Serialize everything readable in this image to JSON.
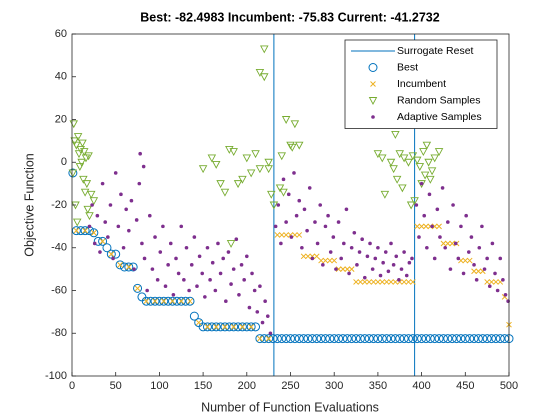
{
  "chart_data": {
    "type": "scatter",
    "title": "Best: -82.4983 Incumbent: -75.83 Current: -41.2732",
    "xlabel": "Number of Function Evaluations",
    "ylabel": "Objective Function",
    "xlim": [
      0,
      500
    ],
    "ylim": [
      -100,
      60
    ],
    "xticks": [
      0,
      50,
      100,
      150,
      200,
      250,
      300,
      350,
      400,
      450,
      500
    ],
    "yticks": [
      -100,
      -80,
      -60,
      -40,
      -20,
      0,
      20,
      40,
      60
    ],
    "grid": false,
    "legend": "upper right",
    "series": [
      {
        "name": "Surrogate Reset",
        "color": "#0072BD",
        "marker": "vline",
        "x": [
          231,
          392
        ]
      },
      {
        "name": "Best",
        "color": "#0072BD",
        "marker": "circle",
        "x": [
          1,
          5,
          10,
          15,
          20,
          25,
          30,
          35,
          40,
          45,
          50,
          55,
          60,
          65,
          70,
          75,
          80,
          85,
          90,
          95,
          100,
          105,
          110,
          115,
          120,
          125,
          130,
          135,
          140,
          145,
          150,
          155,
          160,
          165,
          170,
          175,
          180,
          185,
          190,
          195,
          200,
          205,
          210,
          215,
          220,
          225,
          230,
          235,
          240,
          245,
          250,
          255,
          260,
          265,
          270,
          275,
          280,
          285,
          290,
          295,
          300,
          305,
          310,
          315,
          320,
          325,
          330,
          335,
          340,
          345,
          350,
          355,
          360,
          365,
          370,
          375,
          380,
          385,
          390,
          395,
          400,
          405,
          410,
          415,
          420,
          425,
          430,
          435,
          440,
          445,
          450,
          455,
          460,
          465,
          470,
          475,
          480,
          485,
          490,
          495,
          500
        ],
        "values": [
          -5,
          -32,
          -32,
          -32,
          -32,
          -33,
          -37,
          -37,
          -40,
          -43,
          -43,
          -48,
          -49,
          -49,
          -49,
          -59,
          -63,
          -65,
          -65,
          -65,
          -65,
          -65,
          -65,
          -65,
          -65,
          -65,
          -65,
          -65,
          -72,
          -75,
          -77,
          -77,
          -77,
          -77,
          -77,
          -77,
          -77,
          -77,
          -77,
          -77,
          -77,
          -77,
          -77,
          -82.5,
          -82.5,
          -82.5,
          -82.5,
          -82.5,
          -82.5,
          -82.5,
          -82.5,
          -82.5,
          -82.5,
          -82.5,
          -82.5,
          -82.5,
          -82.5,
          -82.5,
          -82.5,
          -82.5,
          -82.5,
          -82.5,
          -82.5,
          -82.5,
          -82.5,
          -82.5,
          -82.5,
          -82.5,
          -82.5,
          -82.5,
          -82.5,
          -82.5,
          -82.5,
          -82.5,
          -82.5,
          -82.5,
          -82.5,
          -82.5,
          -82.5,
          -82.5,
          -82.5,
          -82.5,
          -82.5,
          -82.5,
          -82.5,
          -82.5,
          -82.5,
          -82.5,
          -82.5,
          -82.5,
          -82.5,
          -82.5,
          -82.5,
          -82.5,
          -82.5,
          -82.5,
          -82.5,
          -82.5,
          -82.5,
          -82.5,
          -82.5
        ]
      },
      {
        "name": "Incumbent",
        "color": "#EDB120",
        "marker": "x",
        "x": [
          5,
          15,
          25,
          35,
          45,
          55,
          65,
          75,
          85,
          95,
          105,
          115,
          125,
          135,
          145,
          155,
          165,
          175,
          185,
          195,
          205,
          215,
          225,
          235,
          240,
          245,
          250,
          255,
          260,
          265,
          270,
          275,
          280,
          285,
          290,
          295,
          300,
          305,
          310,
          315,
          320,
          325,
          330,
          335,
          340,
          345,
          350,
          355,
          360,
          365,
          370,
          375,
          380,
          385,
          390,
          395,
          400,
          405,
          410,
          415,
          420,
          425,
          430,
          435,
          440,
          445,
          450,
          455,
          460,
          465,
          470,
          475,
          480,
          485,
          490,
          495,
          500
        ],
        "values": [
          -32,
          -32,
          -33,
          -37,
          -43,
          -48,
          -49,
          -59,
          -65,
          -65,
          -65,
          -65,
          -65,
          -65,
          -75,
          -77,
          -77,
          -77,
          -77,
          -77,
          -77,
          -82.5,
          -82.5,
          -34,
          -34,
          -34,
          -34,
          -34,
          -34,
          -44,
          -44,
          -44,
          -44,
          -46,
          -46,
          -46,
          -46,
          -50,
          -50,
          -50,
          -50,
          -56,
          -56,
          -56,
          -56,
          -56,
          -56,
          -56,
          -56,
          -56,
          -56,
          -56,
          -56,
          -56,
          -56,
          -30,
          -30,
          -30,
          -30,
          -30,
          -30,
          -38,
          -38,
          -38,
          -38,
          -46,
          -46,
          -46,
          -51,
          -51,
          -51,
          -56,
          -56,
          -56,
          -56,
          -63,
          -76
        ]
      },
      {
        "name": "Random Samples",
        "color": "#77AC30",
        "marker": "triangle",
        "x": [
          1,
          2,
          3,
          4,
          5,
          6,
          7,
          8,
          9,
          10,
          11,
          12,
          13,
          14,
          15,
          16,
          17,
          18,
          19,
          20,
          22,
          25,
          150,
          160,
          165,
          170,
          175,
          180,
          182,
          185,
          190,
          195,
          200,
          205,
          210,
          215,
          215,
          220,
          220,
          225,
          225,
          228,
          231,
          238,
          240,
          242,
          245,
          250,
          252,
          255,
          260,
          350,
          355,
          358,
          360,
          365,
          368,
          370,
          372,
          375,
          378,
          380,
          385,
          388,
          390,
          392,
          395,
          398,
          400,
          402,
          404,
          406,
          408,
          410,
          412,
          415,
          418,
          420
        ],
        "values": [
          -5,
          18,
          10,
          -20,
          8,
          -28,
          12,
          4,
          -2,
          6,
          0,
          9,
          -8,
          5,
          -14,
          2,
          -10,
          -22,
          3,
          -25,
          -15,
          -18,
          -3,
          2,
          -1,
          -10,
          -14,
          6,
          -38,
          5,
          -10,
          -8,
          2,
          -5,
          4,
          -3,
          42,
          40,
          53,
          0,
          -3,
          -15,
          -20,
          -12,
          3,
          -14,
          20,
          8,
          7,
          18,
          8,
          4,
          2,
          -15,
          26,
          0,
          -3,
          13,
          -8,
          4,
          -12,
          2,
          0,
          -20,
          3,
          -18,
          1,
          -2,
          -10,
          5,
          -6,
          8,
          0,
          -8,
          -4,
          2,
          18,
          5
        ]
      },
      {
        "name": "Adaptive Samples",
        "color": "#7E2F8E",
        "marker": "dot",
        "x": [
          20,
          23,
          26,
          29,
          32,
          35,
          38,
          41,
          44,
          47,
          50,
          53,
          56,
          59,
          62,
          65,
          68,
          71,
          74,
          77,
          78,
          80,
          82,
          83,
          86,
          89,
          92,
          95,
          98,
          101,
          104,
          107,
          110,
          113,
          116,
          119,
          122,
          125,
          128,
          131,
          134,
          137,
          140,
          143,
          146,
          149,
          152,
          155,
          158,
          161,
          164,
          167,
          170,
          173,
          176,
          179,
          182,
          185,
          188,
          191,
          194,
          197,
          200,
          203,
          206,
          209,
          212,
          215,
          218,
          221,
          224,
          227,
          233,
          236,
          239,
          242,
          245,
          248,
          251,
          254,
          257,
          260,
          263,
          266,
          269,
          272,
          275,
          278,
          281,
          284,
          287,
          290,
          293,
          296,
          299,
          302,
          305,
          308,
          311,
          314,
          317,
          320,
          323,
          326,
          329,
          332,
          335,
          338,
          341,
          344,
          347,
          350,
          353,
          356,
          359,
          362,
          365,
          368,
          371,
          374,
          377,
          380,
          383,
          386,
          389,
          394,
          397,
          400,
          403,
          406,
          409,
          412,
          415,
          418,
          421,
          424,
          427,
          430,
          433,
          436,
          439,
          442,
          445,
          448,
          451,
          454,
          457,
          460,
          463,
          466,
          469,
          472,
          475,
          478,
          481,
          484,
          487,
          490,
          493,
          496,
          499
        ],
        "values": [
          -30,
          -20,
          -38,
          -25,
          -42,
          -10,
          -28,
          -35,
          -20,
          -45,
          -5,
          -30,
          -15,
          -40,
          -22,
          -32,
          -18,
          -50,
          -27,
          -10,
          4,
          -38,
          -2,
          -45,
          -60,
          -25,
          -50,
          -35,
          -55,
          -42,
          -30,
          -58,
          -48,
          -38,
          -62,
          -45,
          -52,
          -30,
          -55,
          -40,
          -60,
          -48,
          -35,
          -58,
          -44,
          -52,
          -63,
          -40,
          -55,
          -47,
          -60,
          -38,
          -52,
          -45,
          -65,
          -42,
          -57,
          -50,
          -36,
          -62,
          -48,
          -55,
          -44,
          -68,
          -52,
          -60,
          -70,
          -58,
          -75,
          -65,
          -72,
          -80,
          -30,
          -20,
          -38,
          -8,
          -28,
          -15,
          -35,
          -5,
          -25,
          -18,
          -40,
          -22,
          -32,
          -12,
          -45,
          -28,
          -38,
          -20,
          -48,
          -30,
          -25,
          -42,
          -35,
          -50,
          -28,
          -45,
          -38,
          -22,
          -52,
          -40,
          -33,
          -48,
          -42,
          -36,
          -54,
          -44,
          -38,
          -50,
          -45,
          -40,
          -53,
          -47,
          -42,
          -51,
          -38,
          -48,
          -44,
          -55,
          -50,
          -42,
          -53,
          -47,
          -45,
          -20,
          -35,
          -10,
          -25,
          -40,
          -15,
          -30,
          -45,
          -22,
          -35,
          -12,
          -40,
          -28,
          -50,
          -20,
          -38,
          -45,
          -30,
          -52,
          -25,
          -42,
          -35,
          -48,
          -55,
          -40,
          -30,
          -50,
          -45,
          -58,
          -38,
          -52,
          -60,
          -45,
          -55,
          -62,
          -65
        ]
      }
    ]
  }
}
